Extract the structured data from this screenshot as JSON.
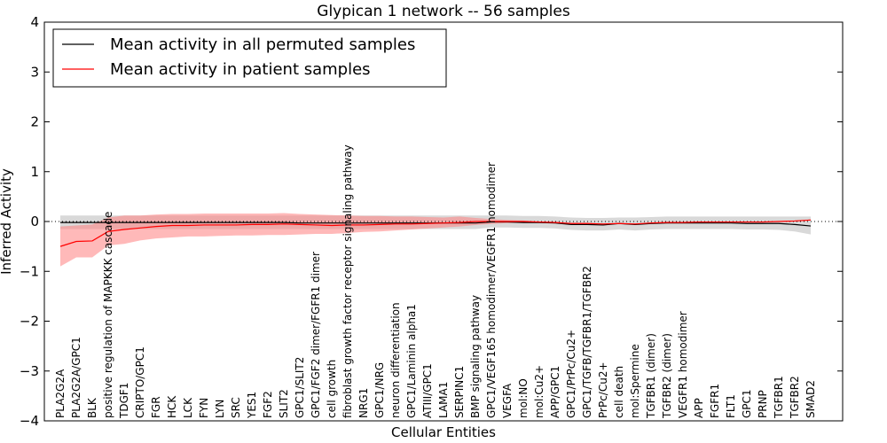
{
  "chart_data": {
    "type": "line",
    "title": "Glypican 1 network -- 56 samples",
    "xlabel": "Cellular Entities",
    "ylabel": "Inferred Activity",
    "ylim": [
      -4,
      4
    ],
    "yticks": [
      -4,
      -3,
      -2,
      -1,
      0,
      1,
      2,
      3,
      4
    ],
    "legend_position": "top-left",
    "colors": {
      "permuted_line": "#000000",
      "permuted_band": "#bfbfbf",
      "patient_line": "#ff0000",
      "patient_band": "#ff8080",
      "zero_line": "#000000"
    },
    "categories": [
      "PLA2G2A",
      "PLA2G2A/GPC1",
      "BLK",
      "positive regulation of MAPKKK cascade",
      "TDGF1",
      "CRIPTO/GPC1",
      "FGR",
      "HCK",
      "LCK",
      "FYN",
      "LYN",
      "SRC",
      "YES1",
      "FGF2",
      "SLIT2",
      "GPC1/SLIT2",
      "GPC1/FGF2 dimer/FGFR1 dimer",
      "cell growth",
      "fibroblast growth factor receptor signaling pathway",
      "NRG1",
      "GPC1/NRG",
      "neuron differentiation",
      "GPC1/Laminin alpha1",
      "ATIII/GPC1",
      "LAMA1",
      "SERPINC1",
      "BMP signaling pathway",
      "GPC1/VEGF165 homodimer/VEGFR1 homodimer",
      "VEGFA",
      "mol:NO",
      "mol:Cu2+",
      "APP/GPC1",
      "GPC1/PrPc/Cu2+",
      "GPC1/TGFB/TGFBR1/TGFBR2",
      "PrPc/Cu2+",
      "cell death",
      "mol:Spermine",
      "TGFBR1 (dimer)",
      "TGFBR2 (dimer)",
      "VEGFR1 homodimer",
      "APP",
      "FGFR1",
      "FLT1",
      "GPC1",
      "PRNP",
      "TGFBR1",
      "TGFBR2",
      "SMAD2"
    ],
    "series": [
      {
        "name": "Mean activity in all permuted samples",
        "values": [
          -0.02,
          -0.02,
          -0.02,
          -0.02,
          -0.02,
          -0.02,
          -0.02,
          -0.02,
          -0.02,
          -0.02,
          -0.02,
          -0.02,
          -0.02,
          -0.02,
          -0.02,
          -0.03,
          -0.03,
          -0.03,
          -0.03,
          -0.03,
          -0.03,
          -0.03,
          -0.03,
          -0.03,
          -0.03,
          -0.03,
          -0.03,
          -0.01,
          -0.01,
          -0.02,
          -0.02,
          -0.03,
          -0.06,
          -0.06,
          -0.07,
          -0.04,
          -0.06,
          -0.04,
          -0.03,
          -0.03,
          -0.03,
          -0.03,
          -0.03,
          -0.04,
          -0.04,
          -0.04,
          -0.06,
          -0.09
        ],
        "lower": [
          -0.15,
          -0.15,
          -0.15,
          -0.15,
          -0.15,
          -0.15,
          -0.15,
          -0.15,
          -0.15,
          -0.15,
          -0.15,
          -0.15,
          -0.15,
          -0.15,
          -0.15,
          -0.15,
          -0.15,
          -0.15,
          -0.15,
          -0.15,
          -0.15,
          -0.15,
          -0.15,
          -0.15,
          -0.15,
          -0.15,
          -0.15,
          -0.12,
          -0.12,
          -0.13,
          -0.13,
          -0.14,
          -0.17,
          -0.18,
          -0.18,
          -0.16,
          -0.18,
          -0.16,
          -0.15,
          -0.15,
          -0.15,
          -0.15,
          -0.15,
          -0.16,
          -0.16,
          -0.17,
          -0.2,
          -0.26
        ],
        "upper": [
          0.12,
          0.12,
          0.12,
          0.12,
          0.12,
          0.12,
          0.12,
          0.12,
          0.12,
          0.12,
          0.12,
          0.12,
          0.12,
          0.12,
          0.12,
          0.12,
          0.12,
          0.12,
          0.12,
          0.12,
          0.12,
          0.12,
          0.12,
          0.12,
          0.12,
          0.12,
          0.12,
          0.12,
          0.12,
          0.11,
          0.11,
          0.1,
          0.08,
          0.07,
          0.07,
          0.08,
          0.08,
          0.09,
          0.1,
          0.1,
          0.1,
          0.1,
          0.1,
          0.1,
          0.1,
          0.1,
          0.1,
          0.1
        ]
      },
      {
        "name": "Mean activity in patient samples",
        "values": [
          -0.5,
          -0.4,
          -0.39,
          -0.2,
          -0.16,
          -0.13,
          -0.1,
          -0.08,
          -0.08,
          -0.07,
          -0.07,
          -0.07,
          -0.06,
          -0.06,
          -0.05,
          -0.06,
          -0.07,
          -0.08,
          -0.07,
          -0.07,
          -0.06,
          -0.05,
          -0.05,
          -0.04,
          -0.03,
          -0.02,
          0.0,
          0.0,
          0.0,
          0.0,
          -0.01,
          -0.02,
          -0.04,
          -0.04,
          -0.05,
          -0.04,
          -0.05,
          -0.03,
          -0.02,
          -0.02,
          -0.01,
          -0.01,
          -0.01,
          -0.01,
          -0.01,
          0.0,
          0.01,
          0.03
        ],
        "lower": [
          -0.9,
          -0.72,
          -0.72,
          -0.48,
          -0.45,
          -0.38,
          -0.34,
          -0.32,
          -0.3,
          -0.3,
          -0.29,
          -0.28,
          -0.28,
          -0.27,
          -0.27,
          -0.26,
          -0.25,
          -0.25,
          -0.23,
          -0.21,
          -0.2,
          -0.18,
          -0.16,
          -0.14,
          -0.12,
          -0.1,
          -0.07,
          -0.05,
          -0.03,
          -0.02,
          -0.02,
          -0.03,
          -0.05,
          -0.05,
          -0.06,
          -0.05,
          -0.06,
          -0.04,
          -0.03,
          -0.03,
          -0.02,
          -0.02,
          -0.02,
          -0.02,
          -0.02,
          -0.01,
          0.0,
          0.02
        ],
        "upper": [
          -0.1,
          -0.08,
          -0.06,
          0.08,
          0.12,
          0.12,
          0.14,
          0.15,
          0.15,
          0.16,
          0.16,
          0.16,
          0.16,
          0.16,
          0.17,
          0.15,
          0.14,
          0.13,
          0.12,
          0.11,
          0.11,
          0.1,
          0.1,
          0.09,
          0.08,
          0.1,
          0.07,
          0.05,
          0.03,
          0.02,
          0.0,
          -0.01,
          -0.03,
          -0.03,
          -0.04,
          -0.03,
          -0.04,
          -0.02,
          -0.01,
          -0.01,
          0.0,
          0.0,
          0.0,
          0.0,
          0.0,
          0.01,
          0.02,
          0.04
        ]
      }
    ]
  }
}
